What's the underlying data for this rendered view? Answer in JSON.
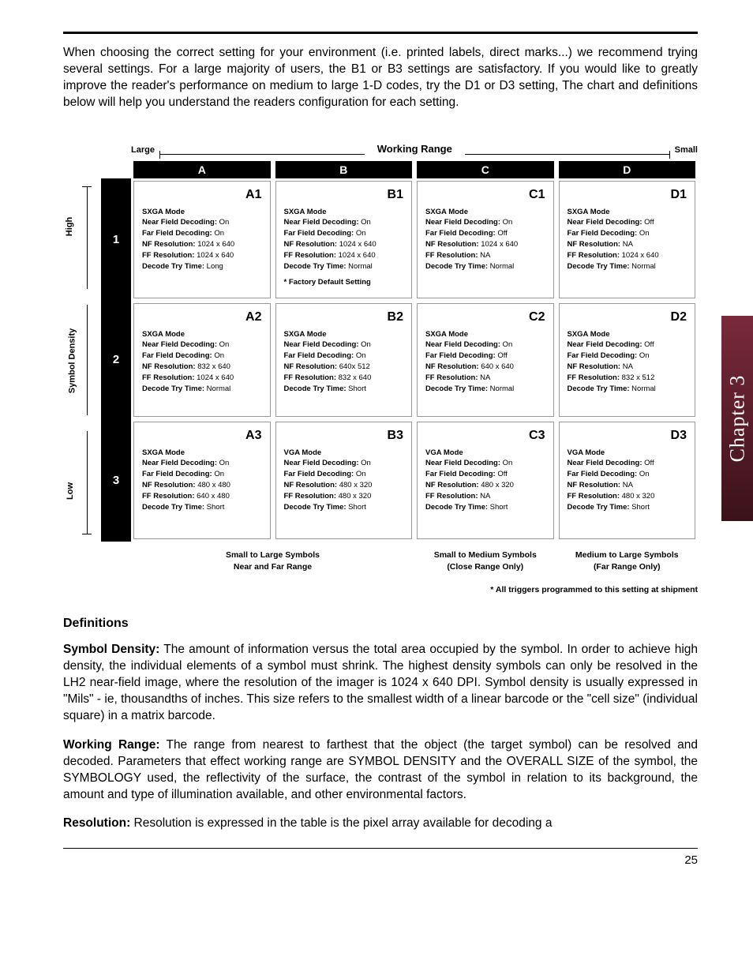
{
  "sideTab": "Chapter 3",
  "pageNumber": "25",
  "intro": "When choosing the correct setting for your environment (i.e. printed labels, direct marks...) we recommend trying several settings. For a large majority of users, the B1 or B3 settings are satisfactory. If you would like to greatly improve the reader's performance on medium to large 1-D codes, try the D1 or D3 setting, The chart and definitions below will help you understand the readers configuration for each setting.",
  "chart": {
    "workingRange": {
      "label": "Working Range",
      "left": "Large",
      "right": "Small"
    },
    "yAxis": {
      "label": "Symbol Density",
      "top": "High",
      "bottom": "Low"
    },
    "columns": [
      "A",
      "B",
      "C",
      "D"
    ],
    "rows": [
      "1",
      "2",
      "3"
    ],
    "cells": [
      [
        {
          "code": "A1",
          "mode": "SXGA Mode",
          "nfd": "On",
          "ffd": "On",
          "nfr": "1024 x 640",
          "ffr": "1024 x 640",
          "dtt": "Long",
          "footnote": ""
        },
        {
          "code": "B1",
          "mode": "SXGA Mode",
          "nfd": "On",
          "ffd": "On",
          "nfr": "1024 x 640",
          "ffr": "1024 x 640",
          "dtt": "Normal",
          "footnote": "*  Factory Default Setting"
        },
        {
          "code": "C1",
          "mode": "SXGA Mode",
          "nfd": "On",
          "ffd": "Off",
          "nfr": "1024 x 640",
          "ffr": "NA",
          "dtt": "Normal",
          "footnote": ""
        },
        {
          "code": "D1",
          "mode": "SXGA Mode",
          "nfd": "Off",
          "ffd": "On",
          "nfr": "NA",
          "ffr": "1024 x 640",
          "dtt": "Normal",
          "footnote": ""
        }
      ],
      [
        {
          "code": "A2",
          "mode": "SXGA Mode",
          "nfd": "On",
          "ffd": "On",
          "nfr": "832 x 640",
          "ffr": "1024 x 640",
          "dtt": "Normal",
          "footnote": ""
        },
        {
          "code": "B2",
          "mode": "SXGA Mode",
          "nfd": "On",
          "ffd": "On",
          "nfr": "640x 512",
          "ffr": "832 x 640",
          "dtt": "Short",
          "footnote": ""
        },
        {
          "code": "C2",
          "mode": "SXGA Mode",
          "nfd": "On",
          "ffd": "Off",
          "nfr": "640 x 640",
          "ffr": "NA",
          "dtt": "Normal",
          "footnote": ""
        },
        {
          "code": "D2",
          "mode": "SXGA Mode",
          "nfd": "Off",
          "ffd": "On",
          "nfr": "NA",
          "ffr": "832 x 512",
          "dtt": "Normal",
          "footnote": ""
        }
      ],
      [
        {
          "code": "A3",
          "mode": "SXGA Mode",
          "nfd": "On",
          "ffd": "On",
          "nfr": "480 x 480",
          "ffr": "640 x 480",
          "dtt": "Short",
          "footnote": ""
        },
        {
          "code": "B3",
          "mode": "VGA Mode",
          "nfd": "On",
          "ffd": "On",
          "nfr": "480 x 320",
          "ffr": "480 x 320",
          "dtt": "Short",
          "footnote": ""
        },
        {
          "code": "C3",
          "mode": "VGA Mode",
          "nfd": "On",
          "ffd": "Off",
          "nfr": "480 x 320",
          "ffr": "NA",
          "dtt": "Short",
          "footnote": ""
        },
        {
          "code": "D3",
          "mode": "VGA Mode",
          "nfd": "Off",
          "ffd": "On",
          "nfr": "NA",
          "ffr": "480 x 320",
          "dtt": "Short",
          "footnote": ""
        }
      ]
    ],
    "specLabels": {
      "nfd": "Near Field Decoding:",
      "ffd": "Far Field Decoding:",
      "nfr": "NF Resolution:",
      "ffr": "FF Resolution:",
      "dtt": "Decode Try Time:"
    },
    "bottomGroups": [
      {
        "l1": "Small to Large Symbols",
        "l2": "Near and Far Range"
      },
      {
        "l1": "Small to Medium Symbols",
        "l2": "(Close Range Only)"
      },
      {
        "l1": "Medium to Large Symbols",
        "l2": "(Far Range Only)"
      }
    ],
    "shipNote": "* All triggers programmed to this setting at shipment"
  },
  "definitions": {
    "heading": "Definitions",
    "items": [
      {
        "term": "Symbol Density:",
        "text": " The amount of information versus the total area occupied by the symbol. In order to achieve high density, the individual elements of a symbol must shrink. The highest density symbols can only be resolved in the LH2 near-field image, where the resolution of the imager is 1024 x 640 DPI. Symbol density is usually expressed in \"Mils\" - ie, thousandths of inches. This size refers to the smallest width of a linear barcode or the \"cell size\" (individual square) in a matrix barcode."
      },
      {
        "term": "Working Range:",
        "text": " The range from nearest to farthest that the object (the target symbol) can be resolved and decoded. Parameters that effect working range are SYMBOL DENSITY and the OVERALL SIZE of the symbol, the SYMBOLOGY used, the reflectivity of the surface, the contrast of the symbol in relation to its background, the amount and type of illumination available, and other environmental factors."
      },
      {
        "term": "Resolution:",
        "text": " Resolution is expressed in the table is the pixel array available for decoding a"
      }
    ]
  }
}
